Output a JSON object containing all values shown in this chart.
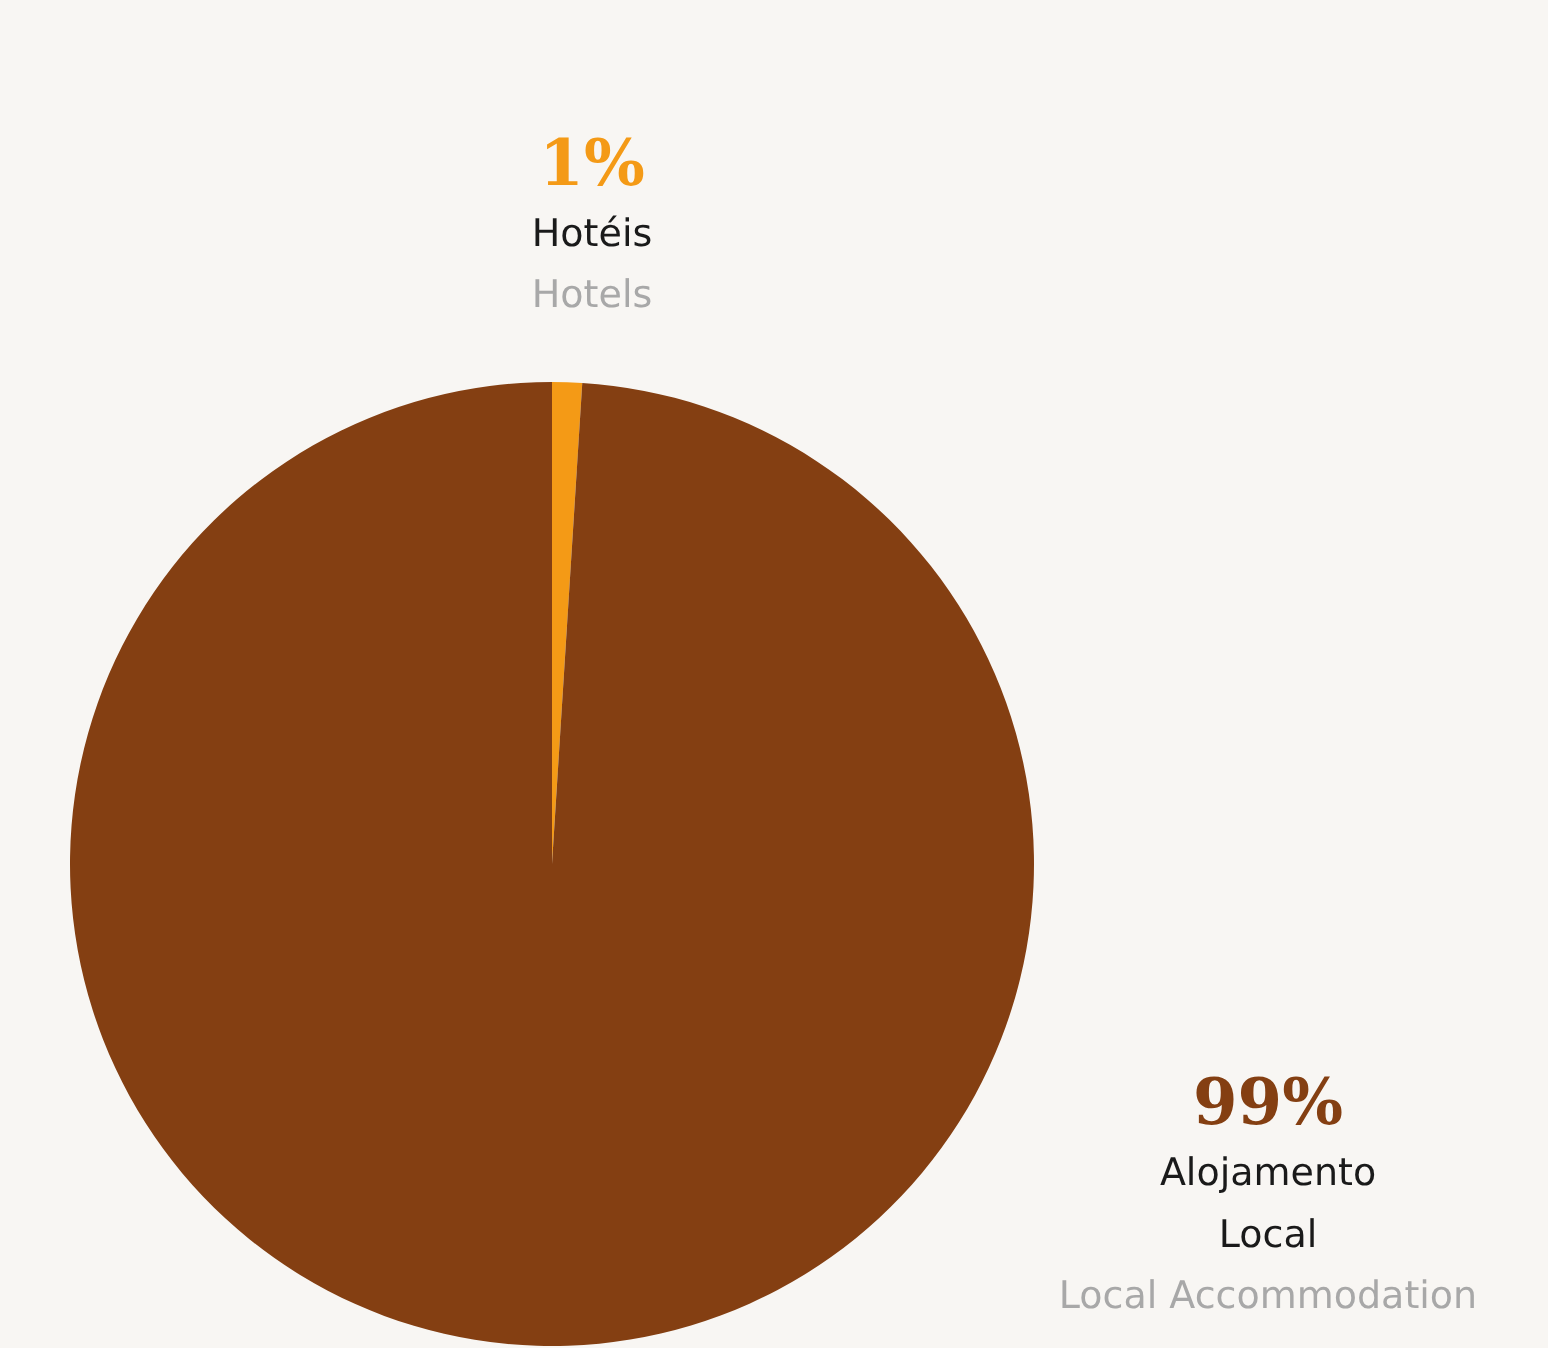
{
  "chart_data": {
    "type": "pie",
    "categories": [
      "Hotéis",
      "Alojamento Local"
    ],
    "values": [
      1,
      99
    ],
    "value_labels": [
      "1%",
      "99%"
    ],
    "colors": [
      "#f49a16",
      "#843f12"
    ],
    "annotations": [
      "Hotels",
      "Local Accommodation"
    ]
  }
}
